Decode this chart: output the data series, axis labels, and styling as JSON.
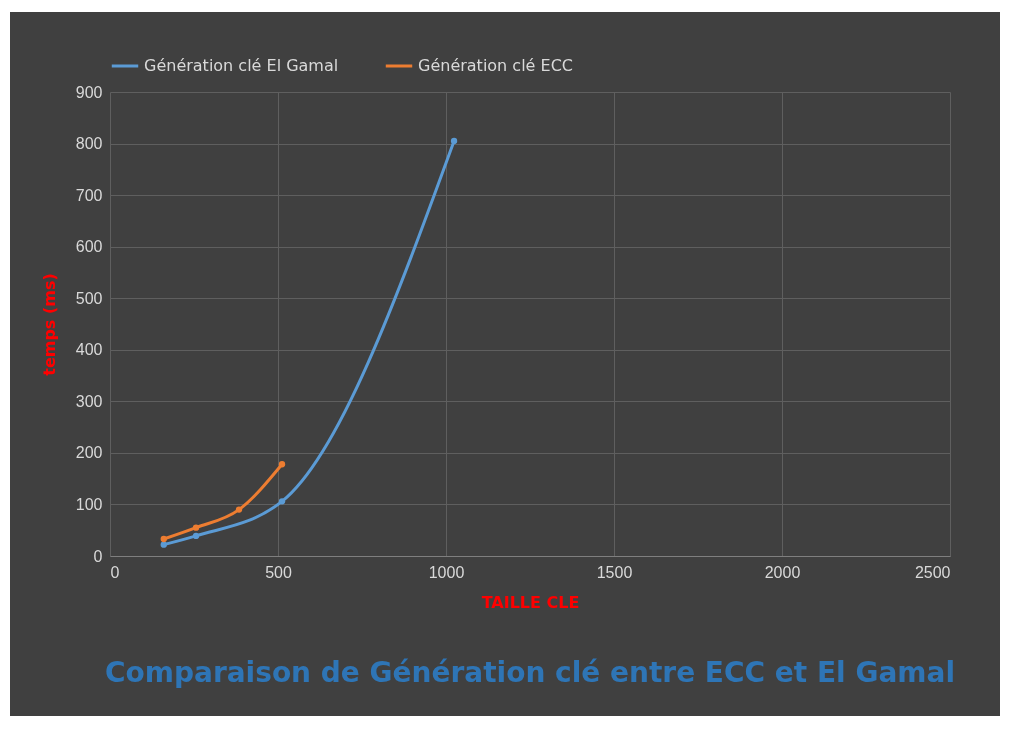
{
  "chart_data": {
    "type": "line",
    "title": "Comparaison de Génération clé entre ECC et El Gamal",
    "xlabel": "TAILLE CLE",
    "ylabel": "temps (ms)",
    "series": [
      {
        "name": "Génération clé El Gamal",
        "color": "#5b9bd5",
        "x": [
          160,
          256,
          512,
          1024
        ],
        "values": [
          22,
          39,
          106,
          805
        ]
      },
      {
        "name": "Génération clé ECC",
        "color": "#ed7d31",
        "x": [
          160,
          256,
          384,
          512
        ],
        "values": [
          33,
          55,
          90,
          178
        ]
      }
    ],
    "xlim": [
      0,
      2500
    ],
    "xticks": [
      0,
      500,
      1000,
      1500,
      2000,
      2500
    ],
    "ylim": [
      0,
      900
    ],
    "yticks": [
      0,
      100,
      200,
      300,
      400,
      500,
      600,
      700,
      800,
      900
    ],
    "grid": true,
    "legend": "top",
    "marker": "circle",
    "line_style": "solid"
  }
}
